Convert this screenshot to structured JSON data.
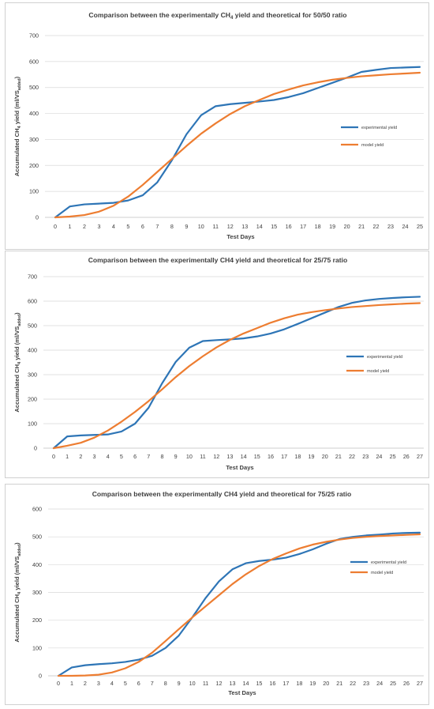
{
  "colors": {
    "experimental": "#2E75B6",
    "model": "#ED7D31"
  },
  "chart_data": [
    {
      "type": "line",
      "title_main": "Comparison  between the experimentally CH",
      "title_sub": "4",
      "title_tail": " yield and theoretical for  50/50  ratio",
      "xlabel": "Test Days",
      "ylabel_main": "Accumulated CH",
      "ylabel_sub1": "4",
      "ylabel_mid": " yield (ml/VS",
      "ylabel_sub2": "added",
      "ylabel_tail": ")",
      "ylim": [
        0,
        700
      ],
      "yticks": [
        "0",
        "100",
        "200",
        "300",
        "400",
        "500",
        "600",
        "700"
      ],
      "x": [
        "0",
        "1",
        "2",
        "3",
        "4",
        "5",
        "6",
        "7",
        "8",
        "9",
        "10",
        "11",
        "12",
        "13",
        "14",
        "15",
        "16",
        "17",
        "18",
        "19",
        "20",
        "21",
        "22",
        "23",
        "24",
        "25"
      ],
      "legend_position": "right",
      "series": [
        {
          "name": "experimental yield",
          "color": "experimental",
          "values": [
            0,
            42,
            50,
            53,
            56,
            65,
            85,
            135,
            220,
            320,
            393,
            428,
            436,
            441,
            446,
            452,
            463,
            478,
            498,
            518,
            538,
            560,
            568,
            575,
            577,
            579
          ]
        },
        {
          "name": "model yield",
          "color": "model",
          "values": [
            0,
            3,
            9,
            22,
            45,
            80,
            125,
            175,
            225,
            275,
            322,
            362,
            398,
            428,
            452,
            475,
            492,
            508,
            520,
            530,
            537,
            543,
            547,
            551,
            554,
            557
          ]
        }
      ]
    },
    {
      "type": "line",
      "title_main": "Comparison  between the experimentally CH4 yield and theoretical for 25/75 ratio",
      "title_sub": "",
      "title_tail": "",
      "xlabel": "Test Days",
      "ylabel_main": "Accumulated CH",
      "ylabel_sub1": "4",
      "ylabel_mid": " yield (ml/VS",
      "ylabel_sub2": "added",
      "ylabel_tail": ")",
      "ylim": [
        0,
        700
      ],
      "yticks": [
        "0",
        "100",
        "200",
        "300",
        "400",
        "500",
        "600",
        "700"
      ],
      "x": [
        "0",
        "1",
        "2",
        "3",
        "4",
        "5",
        "6",
        "7",
        "8",
        "9",
        "10",
        "11",
        "12",
        "13",
        "14",
        "15",
        "16",
        "17",
        "18",
        "19",
        "20",
        "21",
        "22",
        "23",
        "24",
        "25",
        "26",
        "27"
      ],
      "legend_position": "right",
      "series": [
        {
          "name": "experimental yield",
          "color": "experimental",
          "values": [
            0,
            48,
            52,
            54,
            56,
            68,
            100,
            165,
            265,
            352,
            410,
            437,
            441,
            444,
            448,
            456,
            468,
            485,
            507,
            530,
            553,
            576,
            593,
            603,
            609,
            613,
            616,
            618
          ]
        },
        {
          "name": "model yield",
          "color": "model",
          "values": [
            0,
            10,
            22,
            43,
            72,
            108,
            148,
            192,
            240,
            290,
            335,
            375,
            411,
            442,
            468,
            490,
            512,
            530,
            545,
            555,
            563,
            570,
            576,
            580,
            584,
            587,
            590,
            592
          ]
        }
      ]
    },
    {
      "type": "line",
      "title_main": "Comparison  between the experimentally CH4 yield and theoretical for 75/25 ratio",
      "title_sub": "",
      "title_tail": "",
      "xlabel": "Test Days",
      "ylabel_main": "Accumulated CH",
      "ylabel_sub1": "4",
      "ylabel_mid": " yield (ml/VS",
      "ylabel_sub2": "added",
      "ylabel_tail": ")",
      "ylim": [
        0,
        600
      ],
      "yticks": [
        "0",
        "100",
        "200",
        "300",
        "400",
        "500",
        "600"
      ],
      "x": [
        "0",
        "1",
        "2",
        "3",
        "4",
        "5",
        "6",
        "7",
        "8",
        "9",
        "10",
        "11",
        "12",
        "13",
        "14",
        "15",
        "16",
        "17",
        "18",
        "19",
        "20",
        "21",
        "22",
        "23",
        "24",
        "25",
        "26",
        "27"
      ],
      "legend_position": "right",
      "series": [
        {
          "name": "experimental yield",
          "color": "experimental",
          "values": [
            0,
            30,
            38,
            42,
            45,
            50,
            58,
            72,
            100,
            145,
            210,
            280,
            340,
            383,
            405,
            413,
            418,
            425,
            438,
            455,
            475,
            492,
            500,
            505,
            508,
            512,
            514,
            515
          ]
        },
        {
          "name": "model yield",
          "color": "model",
          "values": [
            0,
            0,
            1,
            4,
            12,
            27,
            50,
            83,
            125,
            168,
            210,
            250,
            290,
            330,
            365,
            395,
            420,
            440,
            458,
            472,
            482,
            490,
            496,
            500,
            503,
            505,
            507,
            509
          ]
        }
      ]
    }
  ]
}
